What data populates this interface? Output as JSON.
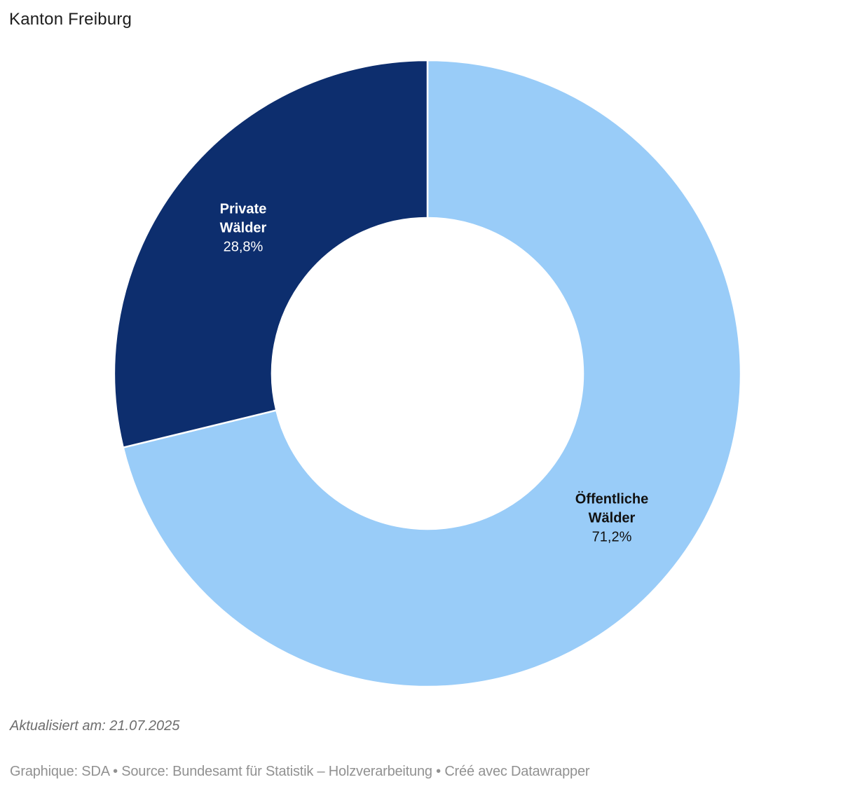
{
  "title": "Kanton Freiburg",
  "chart_data": {
    "type": "pie",
    "subtype": "donut",
    "title": "Kanton Freiburg",
    "categories": [
      "Öffentliche Wälder",
      "Private Wälder"
    ],
    "values": [
      71.2,
      28.8
    ],
    "value_labels": [
      "71,2%",
      "28,8%"
    ],
    "colors": [
      "#99ccf8",
      "#0d2e6e"
    ],
    "label_text_colors": [
      "#111111",
      "#ffffff"
    ],
    "start_angle_deg": 0,
    "direction": "clockwise",
    "separator_color": "#ffffff",
    "legend_position": "labels-inside-slices"
  },
  "footer": {
    "updated": "Aktualisiert am: 21.07.2025",
    "credits": "Graphique: SDA • Source: Bundesamt für Statistik – Holzverarbeitung • Créé avec Datawrapper"
  }
}
